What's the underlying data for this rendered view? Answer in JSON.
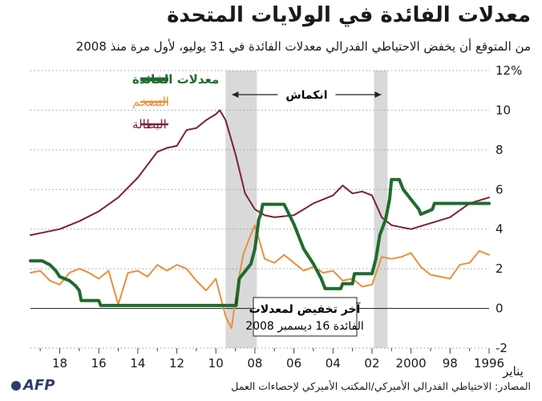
{
  "title": "معدلات الفائدة في الولايات المتحدة",
  "subtitle": "من المتوقع أن يخفض الاحتياطي الفدرالي معدلات الفائدة في 31 يوليو، لأول مرة منذ 2008",
  "source": "المصادر: الاحتياطي الفدرالي الأميركي/المكتب الأميركي لإحصاءات العمل",
  "logo": "AFP",
  "chart_data": {
    "type": "line",
    "x_direction": "right-to-left",
    "xlim": [
      1996,
      2019.5
    ],
    "ylim": [
      -2,
      12
    ],
    "y_ticks": [
      -2,
      0,
      2,
      4,
      6,
      8,
      10,
      12
    ],
    "y_tick_labels": [
      "-2",
      "0",
      "2",
      "4",
      "6",
      "8",
      "10",
      "12%"
    ],
    "x_ticks": [
      2018,
      2016,
      2014,
      2012,
      2010,
      2008,
      2006,
      2004,
      2002,
      2000,
      1998,
      1996
    ],
    "x_tick_labels": [
      "18",
      "16",
      "14",
      "12",
      "10",
      "08",
      "06",
      "04",
      "02",
      "2000",
      "98",
      "1996"
    ],
    "x_start_label": "يناير",
    "grid": "horizontal dotted",
    "legend_position": "top-right",
    "recession_label": "انكماش",
    "recessions": [
      [
        2001.2,
        2001.9
      ],
      [
        2007.9,
        2009.5
      ]
    ],
    "annotation": {
      "line1": "آخر تخفيض لمعدلات",
      "line2": "الفائدة 16 ديسمبر 2008",
      "x": 2008.96
    },
    "series": [
      {
        "name": "معدلات الفائدة",
        "color": "#1f6b2e",
        "x": [
          1996.0,
          1998.8,
          1998.9,
          1999.5,
          1999.6,
          2000.0,
          2000.4,
          2000.6,
          2001.0,
          2001.1,
          2001.3,
          2001.6,
          2001.8,
          2002.0,
          2002.9,
          2003.0,
          2003.5,
          2003.6,
          2004.4,
          2004.6,
          2005.0,
          2005.5,
          2006.0,
          2006.5,
          2007.6,
          2007.7,
          2007.8,
          2008.0,
          2008.2,
          2008.4,
          2008.8,
          2008.96,
          2015.9,
          2016.0,
          2016.9,
          2017.0,
          2017.2,
          2017.5,
          2018.0,
          2018.2,
          2018.5,
          2018.9,
          2019.5
        ],
        "values": [
          5.3,
          5.3,
          5.0,
          4.75,
          5.0,
          5.5,
          6.0,
          6.5,
          6.5,
          5.5,
          4.5,
          3.7,
          2.5,
          1.75,
          1.75,
          1.25,
          1.25,
          1.0,
          1.0,
          1.5,
          2.25,
          3.0,
          4.25,
          5.25,
          5.25,
          4.75,
          4.5,
          3.0,
          2.25,
          2.0,
          1.5,
          0.15,
          0.15,
          0.4,
          0.4,
          0.9,
          1.15,
          1.4,
          1.6,
          1.9,
          2.2,
          2.4,
          2.4
        ]
      },
      {
        "name": "التضخم",
        "color": "#e8913a",
        "x": [
          1996.0,
          1996.5,
          1997.0,
          1997.5,
          1998.0,
          1998.5,
          1999.0,
          1999.5,
          2000.0,
          2000.5,
          2001.0,
          2001.5,
          2002.0,
          2002.5,
          2003.0,
          2003.5,
          2004.0,
          2004.5,
          2005.0,
          2005.5,
          2006.0,
          2006.5,
          2007.0,
          2007.5,
          2008.0,
          2008.3,
          2008.6,
          2008.9,
          2009.2,
          2009.5,
          2010.0,
          2010.5,
          2011.0,
          2011.5,
          2012.0,
          2012.5,
          2013.0,
          2013.5,
          2014.0,
          2014.5,
          2015.0,
          2015.5,
          2016.0,
          2016.5,
          2017.0,
          2017.5,
          2018.0,
          2018.5,
          2019.0,
          2019.5
        ],
        "values": [
          2.7,
          2.9,
          2.3,
          2.2,
          1.5,
          1.6,
          1.7,
          2.1,
          2.8,
          2.6,
          2.5,
          2.6,
          1.2,
          1.1,
          1.5,
          1.4,
          1.9,
          1.8,
          2.1,
          1.9,
          2.3,
          2.7,
          2.3,
          2.5,
          4.2,
          3.5,
          2.7,
          1.1,
          -1.0,
          -0.4,
          1.5,
          0.9,
          1.4,
          2.0,
          2.2,
          1.9,
          2.2,
          1.6,
          1.9,
          1.8,
          0.2,
          1.9,
          1.5,
          1.8,
          2.0,
          1.8,
          1.2,
          1.4,
          1.9,
          1.8
        ],
        "x_note": "x values in decimal years"
      },
      {
        "name": "البطالة",
        "color": "#7a2234",
        "x": [
          1996.0,
          1997.0,
          1998.0,
          1999.0,
          2000.0,
          2001.0,
          2001.5,
          2002.0,
          2002.5,
          2003.0,
          2003.5,
          2004.0,
          2005.0,
          2006.0,
          2007.0,
          2007.5,
          2008.0,
          2008.5,
          2009.0,
          2009.5,
          2009.8,
          2010.0,
          2010.5,
          2011.0,
          2011.5,
          2012.0,
          2012.5,
          2013.0,
          2014.0,
          2015.0,
          2016.0,
          2017.0,
          2018.0,
          2019.0,
          2019.5
        ],
        "values": [
          5.6,
          5.3,
          4.6,
          4.3,
          4.0,
          4.2,
          4.6,
          5.7,
          5.9,
          5.8,
          6.2,
          5.7,
          5.3,
          4.7,
          4.6,
          4.7,
          5.0,
          5.8,
          7.8,
          9.5,
          10.0,
          9.8,
          9.5,
          9.1,
          9.0,
          8.2,
          8.1,
          7.9,
          6.6,
          5.6,
          4.9,
          4.4,
          4.0,
          3.8,
          3.7
        ],
        "x_note": "x values in decimal years"
      }
    ]
  }
}
